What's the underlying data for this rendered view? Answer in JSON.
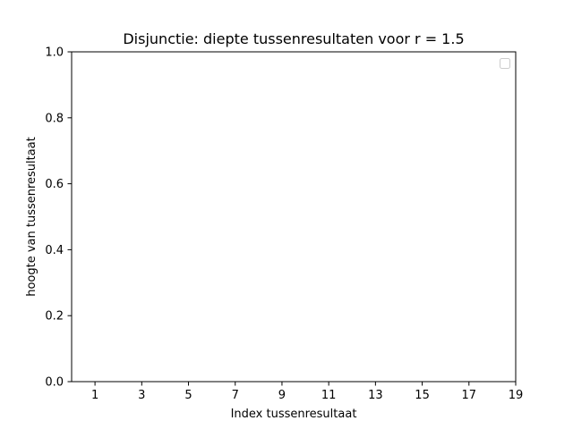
{
  "chart_data": {
    "type": "line",
    "title": "Disjunctie: diepte tussenresultaten voor r = 1.5",
    "xlabel": "Index tussenresultaat",
    "ylabel": "hoogte van tussenresultaat",
    "xlim": [
      0,
      19
    ],
    "ylim": [
      0.0,
      1.0
    ],
    "xticks": [
      1,
      3,
      5,
      7,
      9,
      11,
      13,
      15,
      17,
      19
    ],
    "xtick_labels": [
      "1",
      "3",
      "5",
      "7",
      "9",
      "11",
      "13",
      "15",
      "17",
      "19"
    ],
    "yticks": [
      0.0,
      0.2,
      0.4,
      0.6,
      0.8,
      1.0
    ],
    "ytick_labels": [
      "0.0",
      "0.2",
      "0.4",
      "0.6",
      "0.8",
      "1.0"
    ],
    "series": [],
    "grid": false,
    "legend": {
      "location": "top-right",
      "entries": []
    }
  },
  "colors": {
    "axis": "#000000",
    "legend_border": "#cccccc",
    "background": "#ffffff"
  }
}
